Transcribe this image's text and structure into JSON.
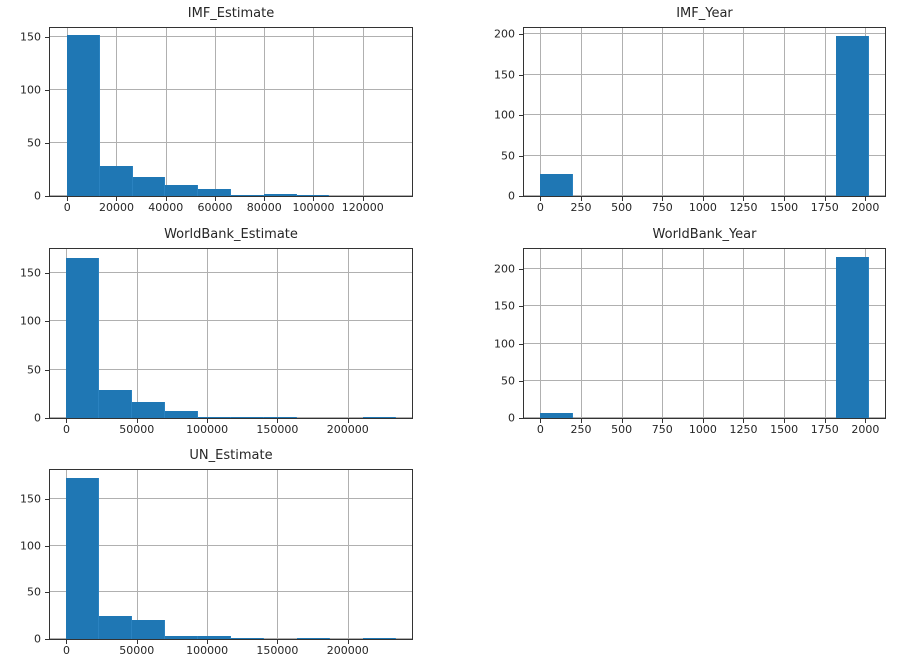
{
  "figure": {
    "bar_color": "#1f77b4",
    "grid_color": "#b0b0b0"
  },
  "chart_data": [
    {
      "type": "bar",
      "title": "IMF_Estimate",
      "xlabel": "",
      "ylabel": "",
      "bin_edges": [
        0,
        13300,
        26600,
        39900,
        53200,
        66500,
        79800,
        93100,
        106400,
        119700,
        133000
      ],
      "values": [
        151,
        28,
        18,
        10,
        7,
        1,
        2,
        1,
        0,
        0
      ],
      "xlim": [
        -7000,
        140000
      ],
      "ylim": [
        0,
        158
      ],
      "xticks": [
        0,
        20000,
        40000,
        60000,
        80000,
        100000,
        120000
      ],
      "xtick_labels": [
        "0",
        "20000",
        "40000",
        "60000",
        "80000",
        "100000",
        "120000"
      ],
      "yticks": [
        0,
        50,
        100,
        150
      ],
      "ytick_labels": [
        "0",
        "50",
        "100",
        "150"
      ],
      "grid": true
    },
    {
      "type": "bar",
      "title": "IMF_Year",
      "xlabel": "",
      "ylabel": "",
      "bin_edges": [
        0,
        202,
        404,
        606,
        808,
        1010,
        1212,
        1414,
        1616,
        1818,
        2020
      ],
      "values": [
        27,
        0,
        0,
        0,
        0,
        0,
        0,
        0,
        0,
        198
      ],
      "xlim": [
        -101,
        2121
      ],
      "ylim": [
        0,
        208
      ],
      "xticks": [
        0,
        250,
        500,
        750,
        1000,
        1250,
        1500,
        1750,
        2000
      ],
      "xtick_labels": [
        "0",
        "250",
        "500",
        "750",
        "1000",
        "1250",
        "1500",
        "1750",
        "2000"
      ],
      "yticks": [
        0,
        50,
        100,
        150,
        200
      ],
      "ytick_labels": [
        "0",
        "50",
        "100",
        "150",
        "200"
      ],
      "grid": true
    },
    {
      "type": "bar",
      "title": "WorldBank_Estimate",
      "xlabel": "",
      "ylabel": "",
      "bin_edges": [
        0,
        23400,
        46800,
        70200,
        93600,
        117000,
        140400,
        163800,
        187200,
        210600,
        234000
      ],
      "values": [
        166,
        29,
        17,
        7,
        1,
        1,
        1,
        0,
        0,
        1
      ],
      "xlim": [
        -11700,
        245700
      ],
      "ylim": [
        0,
        175
      ],
      "xticks": [
        0,
        50000,
        100000,
        150000,
        200000
      ],
      "xtick_labels": [
        "0",
        "50000",
        "100000",
        "150000",
        "200000"
      ],
      "yticks": [
        0,
        50,
        100,
        150
      ],
      "ytick_labels": [
        "0",
        "50",
        "100",
        "150"
      ],
      "grid": true
    },
    {
      "type": "bar",
      "title": "WorldBank_Year",
      "xlabel": "",
      "ylabel": "",
      "bin_edges": [
        0,
        202,
        404,
        606,
        808,
        1010,
        1212,
        1414,
        1616,
        1818,
        2020
      ],
      "values": [
        7,
        0,
        0,
        0,
        0,
        0,
        0,
        0,
        0,
        216
      ],
      "xlim": [
        -101,
        2121
      ],
      "ylim": [
        0,
        227
      ],
      "xticks": [
        0,
        250,
        500,
        750,
        1000,
        1250,
        1500,
        1750,
        2000
      ],
      "xtick_labels": [
        "0",
        "250",
        "500",
        "750",
        "1000",
        "1250",
        "1500",
        "1750",
        "2000"
      ],
      "yticks": [
        0,
        50,
        100,
        150,
        200
      ],
      "ytick_labels": [
        "0",
        "50",
        "100",
        "150",
        "200"
      ],
      "grid": true
    },
    {
      "type": "bar",
      "title": "UN_Estimate",
      "xlabel": "",
      "ylabel": "",
      "bin_edges": [
        0,
        23400,
        46800,
        70200,
        93600,
        117000,
        140400,
        163800,
        187200,
        210600,
        234000
      ],
      "values": [
        172,
        25,
        20,
        3,
        3,
        1,
        0,
        1,
        0,
        1
      ],
      "xlim": [
        -11700,
        245700
      ],
      "ylim": [
        0,
        181
      ],
      "xticks": [
        0,
        50000,
        100000,
        150000,
        200000
      ],
      "xtick_labels": [
        "0",
        "50000",
        "100000",
        "150000",
        "200000"
      ],
      "yticks": [
        0,
        50,
        100,
        150
      ],
      "ytick_labels": [
        "0",
        "50",
        "100",
        "150"
      ],
      "grid": true
    }
  ]
}
